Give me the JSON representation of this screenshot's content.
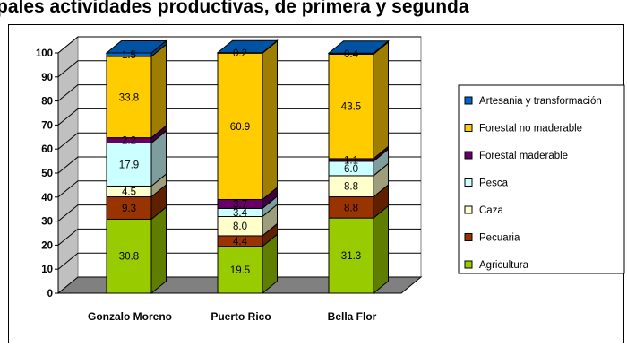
{
  "title": "pales actividades productivas, de primera y segunda",
  "chart_data": {
    "type": "bar",
    "stacked": true,
    "three_d": true,
    "categories": [
      "Gonzalo Moreno",
      "Puerto Rico",
      "Bella Flor"
    ],
    "ylim": [
      0,
      100
    ],
    "yticks": [
      0,
      10,
      20,
      30,
      40,
      50,
      60,
      70,
      80,
      90,
      100
    ],
    "grid": true,
    "legend_position": "right",
    "series": [
      {
        "name": "Agricultura",
        "values": [
          30.8,
          19.5,
          31.3
        ],
        "color": "#99cc00"
      },
      {
        "name": "Pecuaria",
        "values": [
          9.3,
          4.4,
          8.8
        ],
        "color": "#993300"
      },
      {
        "name": "Caza",
        "values": [
          4.5,
          8.0,
          8.8
        ],
        "color": "#ffffcc"
      },
      {
        "name": "Pesca",
        "values": [
          17.9,
          3.4,
          6.0
        ],
        "color": "#ccffff"
      },
      {
        "name": "Forestal maderable",
        "values": [
          2.2,
          3.7,
          1.1
        ],
        "color": "#660066"
      },
      {
        "name": "Forestal no maderable",
        "values": [
          33.8,
          60.9,
          43.5
        ],
        "color": "#ffcc00"
      },
      {
        "name": "Artesania y transformación",
        "values": [
          1.5,
          0.2,
          0.4
        ],
        "color": "#0066cc"
      }
    ]
  }
}
